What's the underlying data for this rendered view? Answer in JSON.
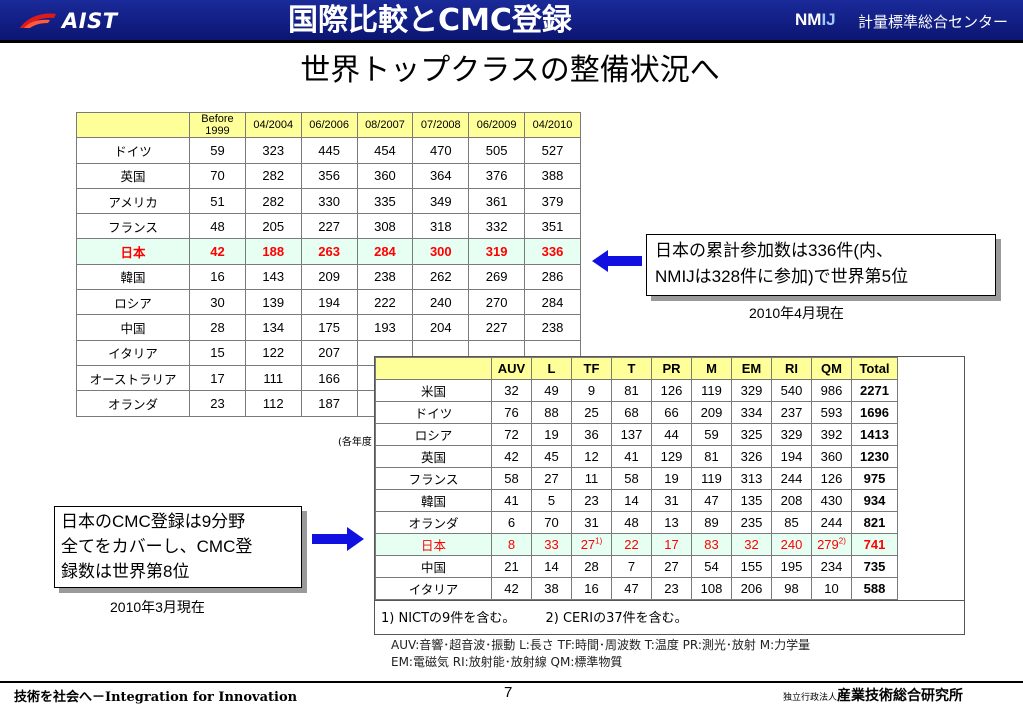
{
  "header": {
    "logo_text": "AIST",
    "title": "国際比較とCMC登録",
    "nmij_a": "NM",
    "nmij_b": "IJ",
    "org_name": "計量標準総合センター"
  },
  "subtitle": "世界トップクラスの整備状況へ",
  "table1": {
    "columns": [
      "Before 1999",
      "04/2004",
      "06/2006",
      "08/2007",
      "07/2008",
      "06/2009",
      "04/2010"
    ],
    "rows": [
      {
        "country": "ドイツ",
        "values": [
          "59",
          "323",
          "445",
          "454",
          "470",
          "505",
          "527"
        ]
      },
      {
        "country": "英国",
        "values": [
          "70",
          "282",
          "356",
          "360",
          "364",
          "376",
          "388"
        ]
      },
      {
        "country": "アメリカ",
        "values": [
          "51",
          "282",
          "330",
          "335",
          "349",
          "361",
          "379"
        ]
      },
      {
        "country": "フランス",
        "values": [
          "48",
          "205",
          "227",
          "308",
          "318",
          "332",
          "351"
        ]
      },
      {
        "country": "日本",
        "values": [
          "42",
          "188",
          "263",
          "284",
          "300",
          "319",
          "336"
        ],
        "highlight": true
      },
      {
        "country": "韓国",
        "values": [
          "16",
          "143",
          "209",
          "238",
          "262",
          "269",
          "286"
        ]
      },
      {
        "country": "ロシア",
        "values": [
          "30",
          "139",
          "194",
          "222",
          "240",
          "270",
          "284"
        ]
      },
      {
        "country": "中国",
        "values": [
          "28",
          "134",
          "175",
          "193",
          "204",
          "227",
          "238"
        ]
      },
      {
        "country": "イタリア",
        "values": [
          "15",
          "122",
          "207",
          "",
          "",
          "",
          ""
        ]
      },
      {
        "country": "オーストラリア",
        "values": [
          "17",
          "111",
          "166",
          "",
          "",
          "",
          ""
        ]
      },
      {
        "country": "オランダ",
        "values": [
          "23",
          "112",
          "187",
          "",
          "",
          "",
          ""
        ]
      }
    ],
    "note": "(各年度"
  },
  "callout1": {
    "line1": "日本の累計参加数は336件(内、",
    "line2": "NMIJは328件に参加)で世界第5位"
  },
  "date1": "2010年4月現在",
  "callout2": {
    "line1": "日本のCMC登録は9分野",
    "line2": "全てをカバーし、CMC登",
    "line3": "録数は世界第8位"
  },
  "date2": "2010年3月現在",
  "table2": {
    "columns": [
      "AUV",
      "L",
      "TF",
      "T",
      "PR",
      "M",
      "EM",
      "RI",
      "QM",
      "Total"
    ],
    "rows": [
      {
        "country": "米国",
        "values": [
          "32",
          "49",
          "9",
          "81",
          "126",
          "119",
          "329",
          "540",
          "986",
          "2271"
        ]
      },
      {
        "country": "ドイツ",
        "values": [
          "76",
          "88",
          "25",
          "68",
          "66",
          "209",
          "334",
          "237",
          "593",
          "1696"
        ]
      },
      {
        "country": "ロシア",
        "values": [
          "72",
          "19",
          "36",
          "137",
          "44",
          "59",
          "325",
          "329",
          "392",
          "1413"
        ]
      },
      {
        "country": "英国",
        "values": [
          "42",
          "45",
          "12",
          "41",
          "129",
          "81",
          "326",
          "194",
          "360",
          "1230"
        ]
      },
      {
        "country": "フランス",
        "values": [
          "58",
          "27",
          "11",
          "58",
          "19",
          "119",
          "313",
          "244",
          "126",
          "975"
        ]
      },
      {
        "country": "韓国",
        "values": [
          "41",
          "5",
          "23",
          "14",
          "31",
          "47",
          "135",
          "208",
          "430",
          "934"
        ]
      },
      {
        "country": "オランダ",
        "values": [
          "6",
          "70",
          "31",
          "48",
          "13",
          "89",
          "235",
          "85",
          "244",
          "821"
        ]
      },
      {
        "country": "日本",
        "values": [
          "8",
          "33",
          "27",
          "22",
          "17",
          "83",
          "32",
          "240",
          "279",
          "741"
        ],
        "highlight": true
      },
      {
        "country": "中国",
        "values": [
          "21",
          "14",
          "28",
          "7",
          "27",
          "54",
          "155",
          "195",
          "234",
          "735"
        ]
      },
      {
        "country": "イタリア",
        "values": [
          "42",
          "38",
          "16",
          "47",
          "23",
          "108",
          "206",
          "98",
          "10",
          "588"
        ]
      }
    ],
    "japan_tf_mark": "1)",
    "japan_qm_mark": "2)",
    "footnote1": "1) NICTの9件を含む。",
    "footnote2": "2) CERIの37件を含む。"
  },
  "legend": {
    "line1": "AUV:音響･超音波･振動  L:長さ  TF:時間･周波数  T:温度  PR:測光･放射  M:力学量",
    "line2": "EM:電磁気  RI:放射能･放射線  QM:標準物質"
  },
  "footer": {
    "slogan": "技術を社会へ－Integration for Innovation",
    "page": "7",
    "org_small": "独立行政法人",
    "org_name": "産業技術総合研究所"
  },
  "colors": {
    "header_band": "#0b1470",
    "highlight_text": "#ff0000",
    "header_cell": "#ffff99",
    "arrow": "#1010e0"
  }
}
